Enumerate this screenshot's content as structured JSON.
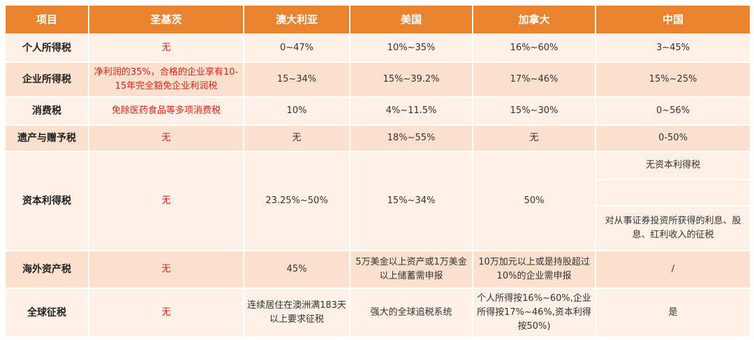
{
  "headers": [
    "项目",
    "圣基茨",
    "澳大利亚",
    "美国",
    "加拿大",
    "中国"
  ],
  "rows": [
    {
      "item": "个人所得税",
      "skn": "无",
      "au": "0~47%",
      "us": "10%~35%",
      "ca": "16%~60%",
      "cn": "3~45%"
    },
    {
      "item": "企业所得税",
      "skn": "净利润的35%，合格的企业享有10-15年完全豁免企业利润税",
      "au": "15~34%",
      "us": "15%~39.2%",
      "ca": "17%~46%",
      "cn": "15%~25%"
    },
    {
      "item": "消费税",
      "skn": "免除医药食品等多项消费税",
      "au": "10%",
      "us": "4%~11.5%",
      "ca": "15%~30%",
      "cn": "0~56%"
    },
    {
      "item": "遗产与赠予税",
      "skn": "无",
      "au": "无",
      "us": "18%~55%",
      "ca": "无",
      "cn": "0-50%"
    },
    {
      "item": "资本利得税",
      "skn": "无",
      "au": "23.25%~50%",
      "us": "15%~34%",
      "ca": "50%",
      "cn_parts": [
        "无资本利得税",
        "",
        "对从事证券投资所获得的利息、股息、红利收入的征税"
      ]
    },
    {
      "item": "海外资产税",
      "skn": "无",
      "au": "45%",
      "us": "5万美金以上资产或1万美金以上储蓄需申报",
      "ca": "10万加元以上或是持股超过10%的企业需申报",
      "cn": "/"
    },
    {
      "item": "全球征税",
      "skn": "无",
      "au": "连续居住在澳洲满183天以上要求征税",
      "us": "强大的全球追税系统",
      "ca": "个人所得按16%~60%,企业所得按17%~46%,资本利得按50%)",
      "cn": "是"
    }
  ]
}
